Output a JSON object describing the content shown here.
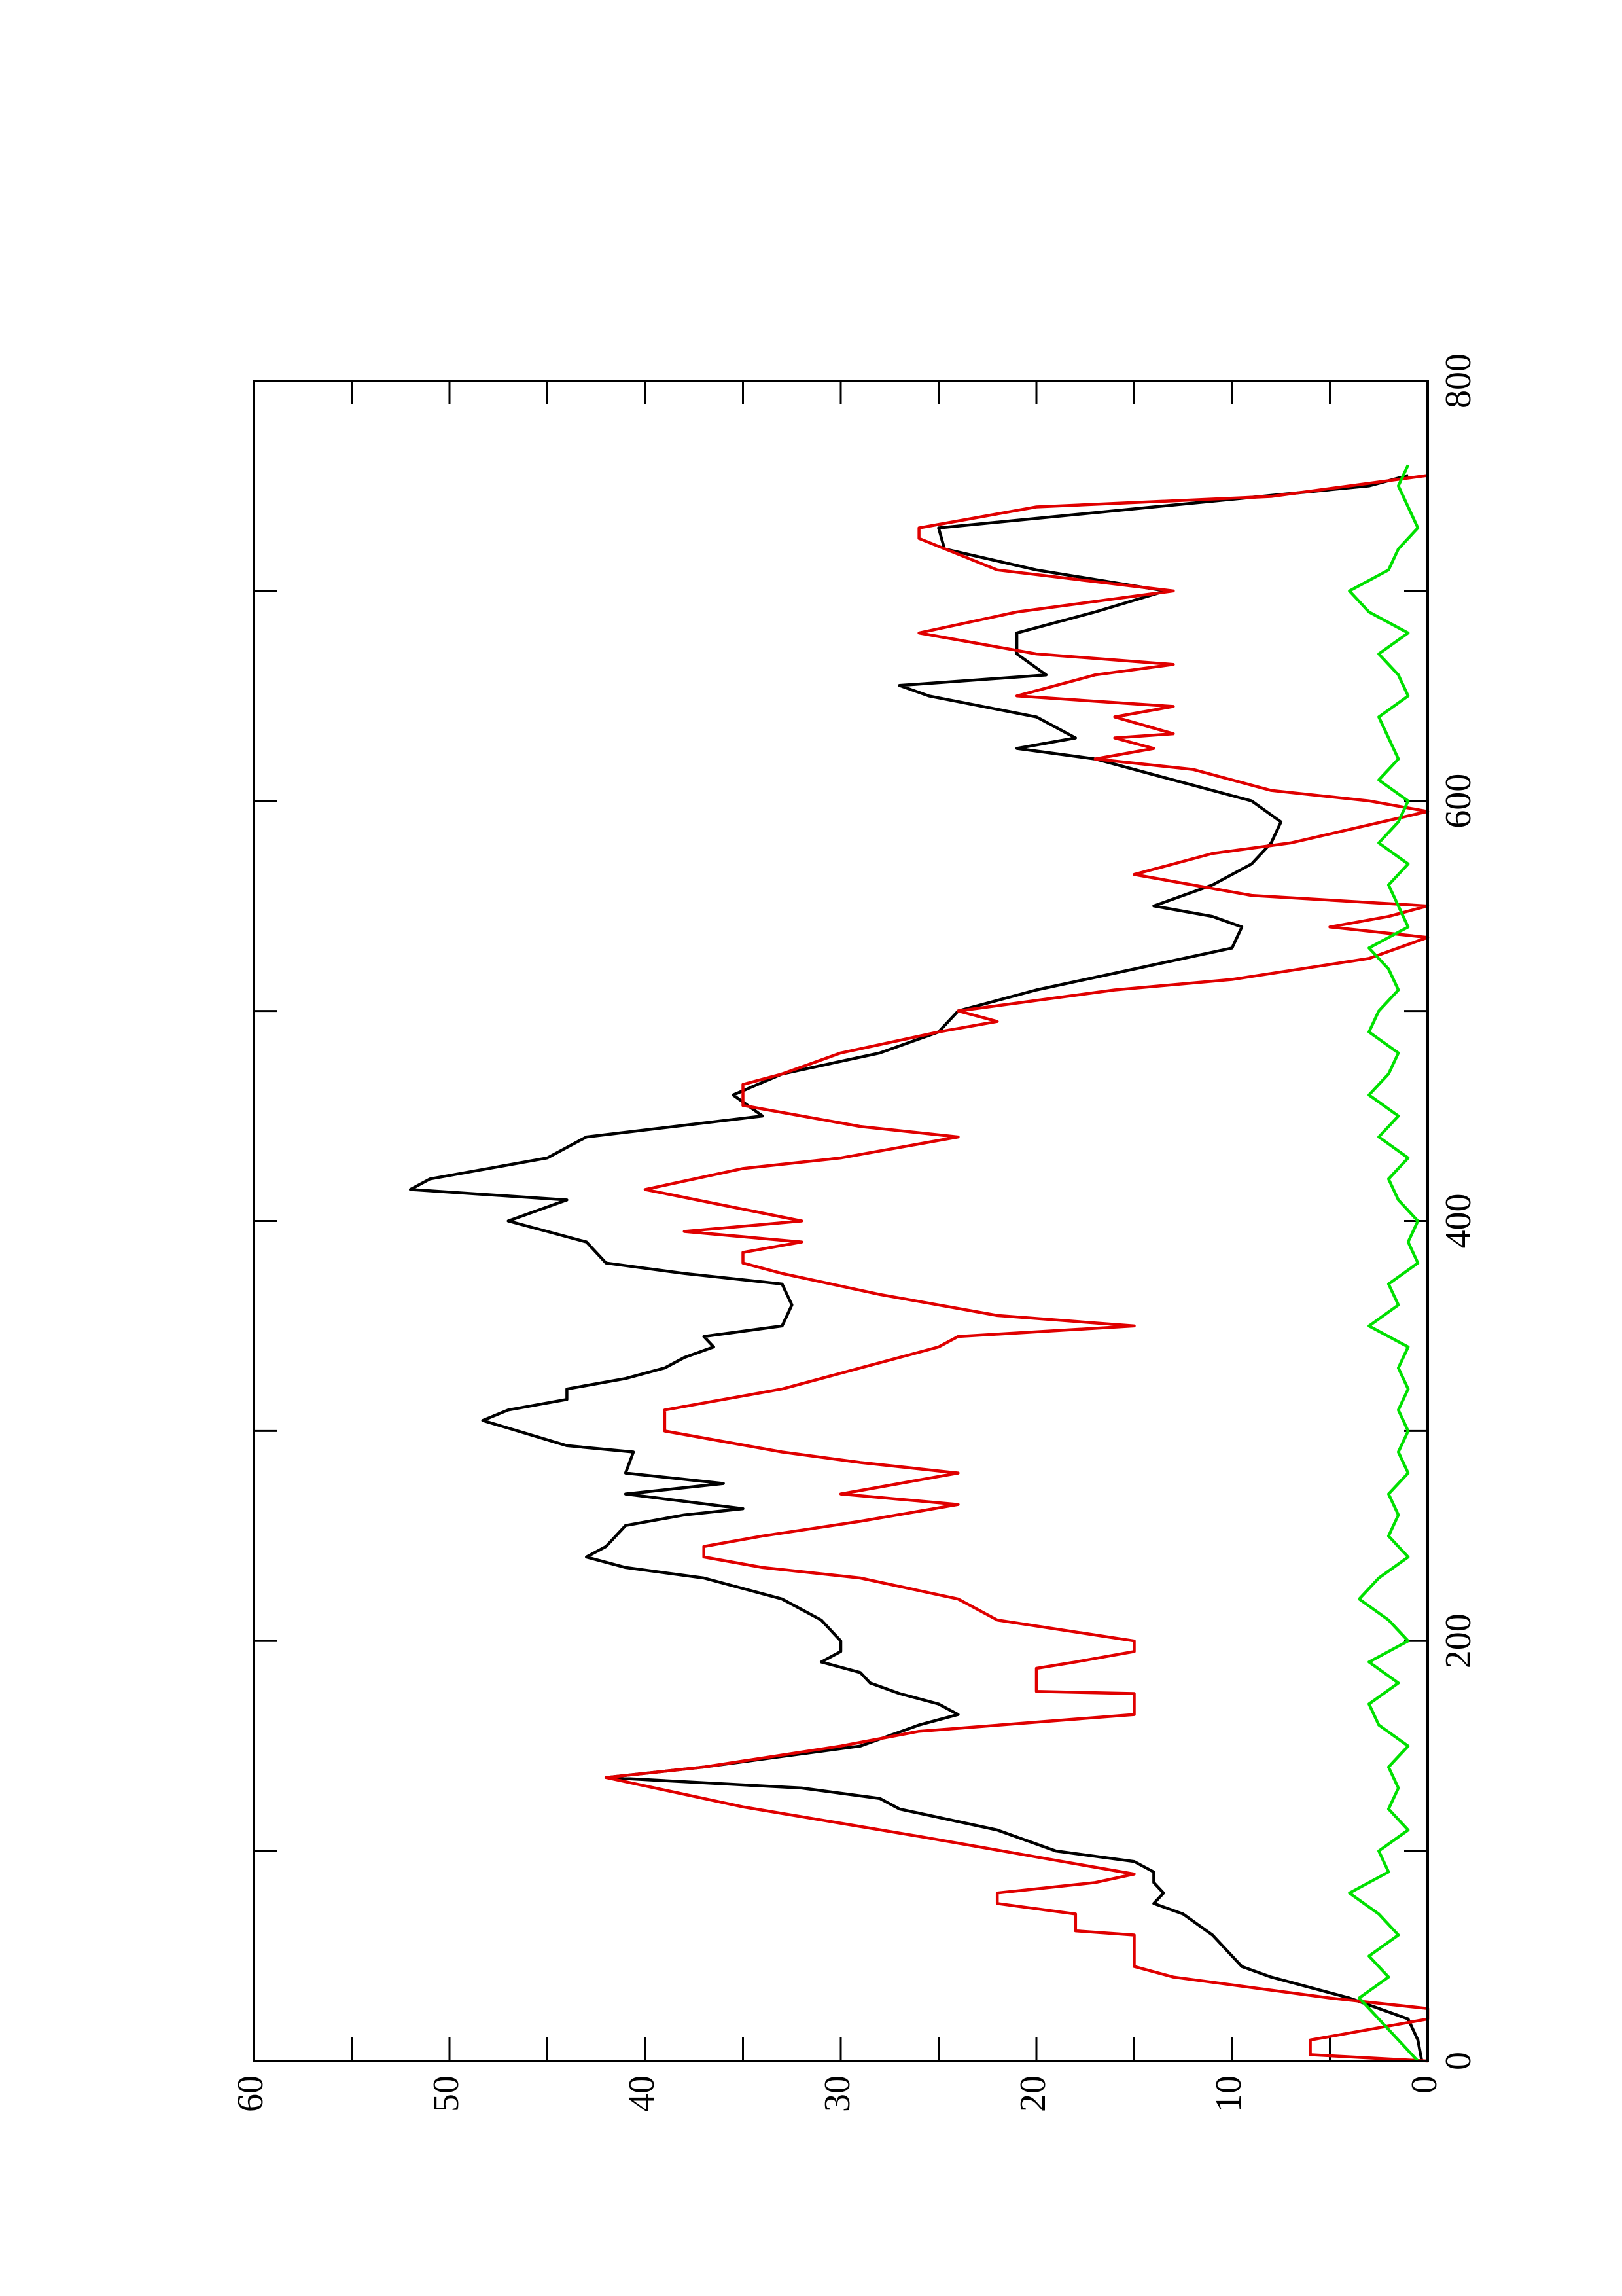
{
  "chart_data": {
    "type": "line",
    "xlim": [
      0,
      800
    ],
    "xticks": [
      0,
      200,
      400,
      600,
      800
    ],
    "xminorticks": [
      100,
      300,
      500,
      700
    ],
    "ylim": [
      0,
      60
    ],
    "yticks": [
      0,
      10,
      20,
      30,
      40,
      50,
      60
    ],
    "yminorticks": [
      5,
      15,
      25,
      35,
      45,
      55
    ],
    "series": [
      {
        "color": "#000000",
        "x": [
          0,
          10,
          20,
          30,
          40,
          45,
          50,
          60,
          70,
          75,
          80,
          85,
          90,
          95,
          100,
          110,
          120,
          125,
          130,
          135,
          140,
          145,
          150,
          160,
          165,
          170,
          175,
          180,
          185,
          190,
          195,
          200,
          210,
          220,
          230,
          235,
          240,
          245,
          250,
          255,
          260,
          263,
          270,
          275,
          280,
          290,
          293,
          305,
          310,
          315,
          320,
          325,
          330,
          335,
          340,
          345,
          350,
          360,
          370,
          375,
          380,
          390,
          395,
          400,
          410,
          415,
          420,
          430,
          440,
          450,
          460,
          470,
          480,
          490,
          500,
          510,
          520,
          530,
          540,
          545,
          550,
          560,
          570,
          580,
          590,
          600,
          610,
          620,
          625,
          630,
          635,
          640,
          650,
          655,
          660,
          670,
          680,
          690,
          700,
          710,
          720,
          730,
          740,
          750,
          755
        ],
        "values": [
          0.3,
          0.5,
          1,
          4,
          8,
          9.5,
          10,
          11,
          12.5,
          14,
          13.5,
          14,
          14,
          15,
          19,
          22,
          27,
          28,
          32,
          42,
          37,
          33,
          29,
          26,
          24,
          25,
          27,
          28.5,
          29,
          31,
          30,
          30,
          31,
          33,
          37,
          41,
          43,
          42,
          41.5,
          41,
          38,
          35,
          41,
          36,
          41,
          40.6,
          44,
          48.3,
          47,
          44,
          44,
          41,
          39,
          38,
          36.5,
          37,
          33,
          32.5,
          33,
          38,
          42,
          43,
          45,
          47,
          44,
          52,
          51,
          45,
          43,
          34,
          35.5,
          33,
          28,
          25,
          24,
          20,
          15,
          10,
          9.5,
          11,
          14,
          11,
          9,
          8,
          7.5,
          9,
          13,
          17,
          21,
          18,
          19,
          20,
          25.5,
          27,
          19.5,
          21,
          21,
          17,
          13.4,
          20,
          24.7,
          25,
          14,
          3,
          1
        ]
      },
      {
        "color": "#e00000",
        "x": [
          0,
          3,
          10,
          20,
          25,
          30,
          40,
          45,
          60,
          62,
          70,
          75,
          80,
          85,
          89,
          107,
          121,
          135,
          140,
          150,
          157,
          165,
          175,
          176,
          187,
          190,
          195,
          200,
          210,
          220,
          230,
          235,
          240,
          245,
          250,
          257,
          265,
          270,
          275,
          280,
          285,
          290,
          300,
          310,
          320,
          330,
          340,
          345,
          350,
          355,
          365,
          375,
          380,
          385,
          390,
          395,
          400,
          415,
          425,
          430,
          440,
          445,
          455,
          465,
          470,
          480,
          490,
          495,
          500,
          510,
          515,
          525,
          535,
          540,
          545,
          550,
          555,
          565,
          575,
          580,
          595,
          600,
          605,
          615,
          620,
          625,
          630,
          632,
          640,
          645,
          650,
          660,
          665,
          670,
          680,
          690,
          700,
          710,
          725,
          730,
          740,
          745,
          755
        ],
        "values": [
          0,
          6,
          6,
          0,
          0,
          5,
          13,
          15,
          15,
          18,
          18,
          22,
          22,
          17,
          15,
          26,
          35,
          42,
          37,
          30,
          26,
          15,
          15,
          20,
          20,
          18,
          15,
          15,
          22,
          24,
          29,
          34,
          37,
          37,
          34,
          29,
          24,
          30,
          27,
          24,
          29,
          33,
          39,
          39,
          33,
          29,
          25,
          24,
          15,
          22,
          28,
          33,
          35,
          35,
          32,
          38,
          32,
          40,
          35,
          30,
          24,
          29,
          35,
          35,
          33,
          30,
          25,
          22,
          24,
          16,
          10,
          3,
          0,
          5,
          2,
          0,
          9,
          15,
          11,
          7,
          0,
          3,
          8,
          12,
          17,
          14,
          16,
          13,
          16,
          13,
          21,
          17,
          13,
          20,
          26,
          21,
          13,
          22,
          26,
          26,
          20,
          8,
          0
        ]
      },
      {
        "color": "#00e000",
        "x": [
          0,
          10,
          20,
          30,
          40,
          50,
          60,
          70,
          80,
          90,
          100,
          110,
          120,
          130,
          140,
          150,
          160,
          170,
          180,
          190,
          200,
          210,
          220,
          230,
          240,
          250,
          260,
          270,
          280,
          290,
          300,
          310,
          320,
          330,
          340,
          350,
          360,
          370,
          380,
          390,
          400,
          410,
          420,
          430,
          440,
          450,
          460,
          470,
          480,
          490,
          500,
          510,
          520,
          530,
          540,
          550,
          560,
          570,
          580,
          590,
          600,
          610,
          620,
          630,
          640,
          650,
          660,
          670,
          680,
          690,
          700,
          710,
          720,
          730,
          740,
          750,
          760
        ],
        "values": [
          0.5,
          1.5,
          2.5,
          3.5,
          2,
          3,
          1.5,
          2.5,
          4,
          2,
          2.5,
          1,
          2,
          1.5,
          2,
          1,
          2.5,
          3,
          1.5,
          3,
          1,
          2,
          3.5,
          2.5,
          1,
          2,
          1.5,
          2,
          1,
          1.5,
          1,
          1.5,
          1,
          1.5,
          1,
          3,
          1.5,
          2,
          0.5,
          1,
          0.5,
          1.5,
          2,
          1,
          2.5,
          1.5,
          3,
          2,
          1.5,
          3,
          2.5,
          1.5,
          2,
          3,
          1,
          1.5,
          2,
          1,
          2.5,
          1.5,
          1,
          2.5,
          1.5,
          2,
          2.5,
          1,
          1.5,
          2.5,
          1,
          3,
          4,
          2,
          1.5,
          0.5,
          1,
          1.5,
          1
        ]
      }
    ]
  }
}
